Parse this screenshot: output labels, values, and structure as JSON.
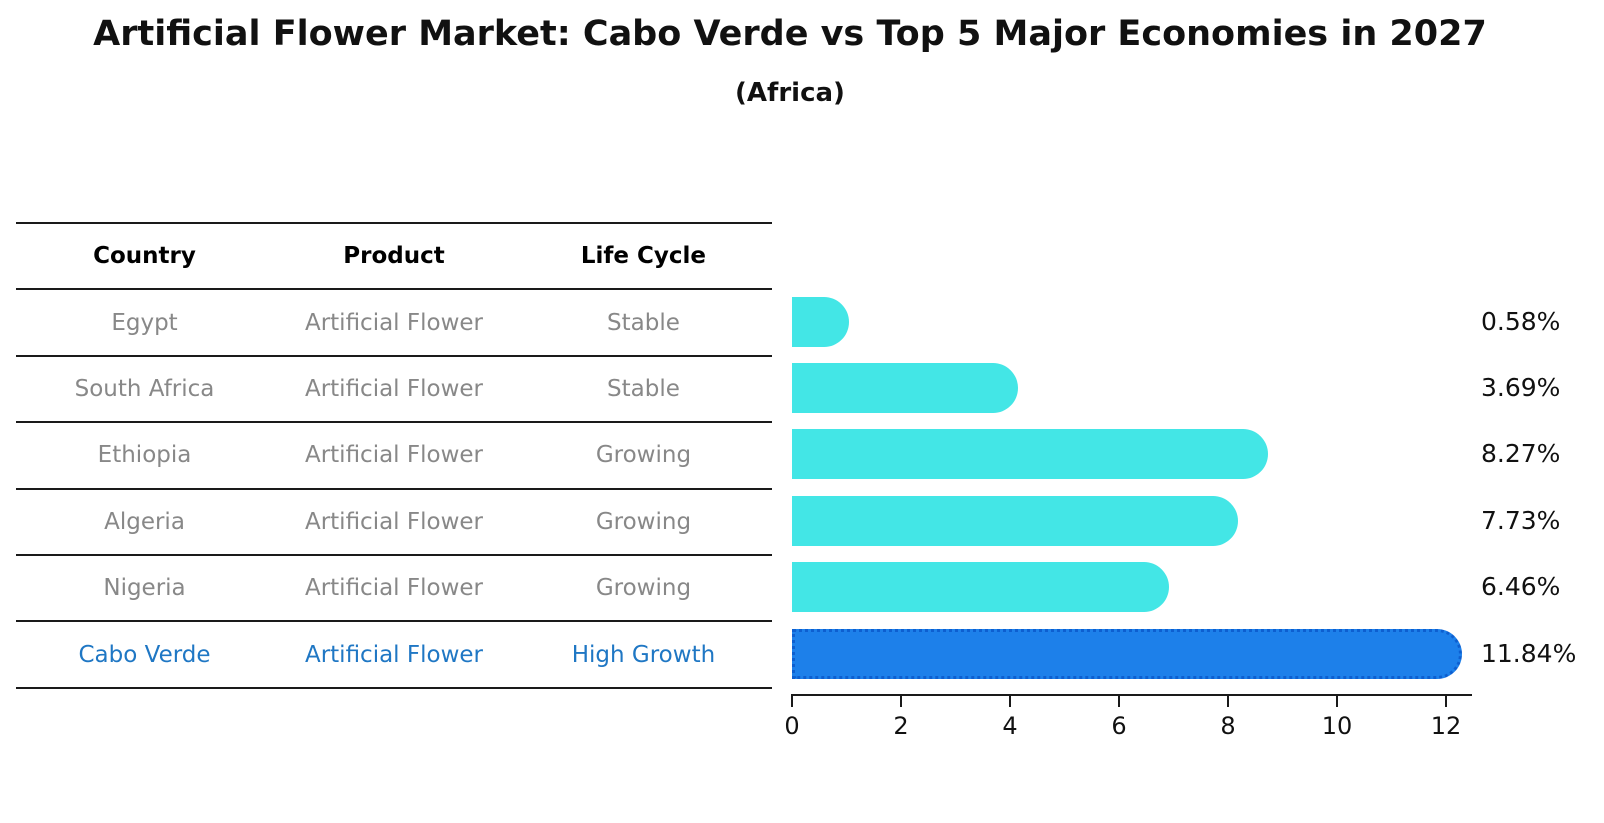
{
  "title": "Artificial Flower Market: Cabo Verde vs Top 5 Major Economies in 2027",
  "subtitle": "(Africa)",
  "table": {
    "headers": [
      "Country",
      "Product",
      "Life Cycle"
    ],
    "rows": [
      {
        "country": "Egypt",
        "product": "Artificial Flower",
        "life_cycle": "Stable",
        "highlight": false
      },
      {
        "country": "South Africa",
        "product": "Artificial Flower",
        "life_cycle": "Stable",
        "highlight": false
      },
      {
        "country": "Ethiopia",
        "product": "Artificial Flower",
        "life_cycle": "Growing",
        "highlight": false
      },
      {
        "country": "Algeria",
        "product": "Artificial Flower",
        "life_cycle": "Growing",
        "highlight": false
      },
      {
        "country": "Nigeria",
        "product": "Artificial Flower",
        "life_cycle": "Growing",
        "highlight": false
      },
      {
        "country": "Cabo Verde",
        "product": "Artificial Flower",
        "life_cycle": "High Growth",
        "highlight": true
      }
    ]
  },
  "chart_data": {
    "type": "bar",
    "orientation": "horizontal",
    "title": "Artificial Flower Market: Cabo Verde vs Top 5 Major Economies in 2027 (Africa)",
    "categories": [
      "Egypt",
      "South Africa",
      "Ethiopia",
      "Algeria",
      "Nigeria",
      "Cabo Verde"
    ],
    "values": [
      0.58,
      3.69,
      8.27,
      7.73,
      6.46,
      11.84
    ],
    "value_labels": [
      "0.58%",
      "3.69%",
      "8.27%",
      "7.73%",
      "6.46%",
      "11.84%"
    ],
    "xlabel": "",
    "ylabel": "",
    "xlim": [
      0,
      12.5
    ],
    "x_ticks": [
      0,
      2,
      4,
      6,
      8,
      10,
      12
    ],
    "grid": false,
    "legend": null,
    "highlight_index": 5
  },
  "colors": {
    "bar": "#43e6e6",
    "highlight_bar": "#1d80ea",
    "highlight_border": "#0d5fd0",
    "highlight_text": "#1f77c4",
    "row_text": "#888888",
    "header_text": "#000000",
    "line": "#1a1a1a"
  }
}
